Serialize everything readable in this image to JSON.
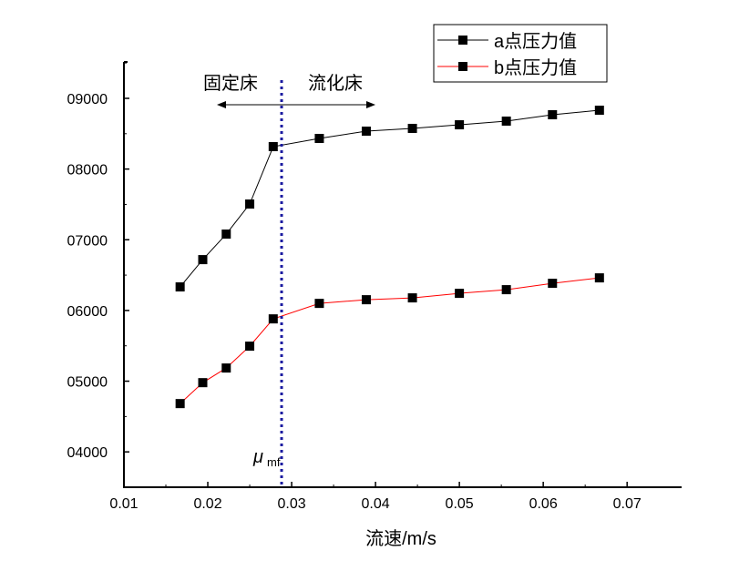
{
  "chart_data": {
    "type": "line",
    "title": "",
    "xlabel": "流速/m/s",
    "ylabel": "",
    "xlim": [
      0.01,
      0.0765
    ],
    "ylim": [
      3500,
      9515
    ],
    "xticks": [
      "0.01",
      "0.02",
      "0.03",
      "0.04",
      "0.05",
      "0.06",
      "0.07"
    ],
    "xtick_values": [
      0.01,
      0.02,
      0.03,
      0.04,
      0.05,
      0.06,
      0.07
    ],
    "yticks": [
      "04000",
      "05000",
      "06000",
      "07000",
      "08000",
      "09000"
    ],
    "ytick_values": [
      4000,
      5000,
      6000,
      7000,
      8000,
      9000
    ],
    "x": [
      0.0167,
      0.0194,
      0.0222,
      0.025,
      0.0278,
      0.0333,
      0.0389,
      0.0444,
      0.05,
      0.0556,
      0.0611,
      0.0667
    ],
    "series": [
      {
        "name": "a点压力值",
        "color": "#000000",
        "values": [
          6333,
          6719,
          7080,
          7505,
          8317,
          8433,
          8536,
          8575,
          8626,
          8678,
          8768,
          8832
        ]
      },
      {
        "name": "b点压力值",
        "color": "#ff0000",
        "values": [
          4683,
          4979,
          5186,
          5495,
          5881,
          6100,
          6152,
          6178,
          6242,
          6294,
          6384,
          6461
        ]
      }
    ],
    "legend_position": "top-right",
    "grid": false,
    "annotations": {
      "mf_line_x": 0.0288,
      "mf_label_main": "μ",
      "mf_label_sub": "mf",
      "fixed_bed": "固定床",
      "fluidized_bed": "流化床"
    }
  }
}
